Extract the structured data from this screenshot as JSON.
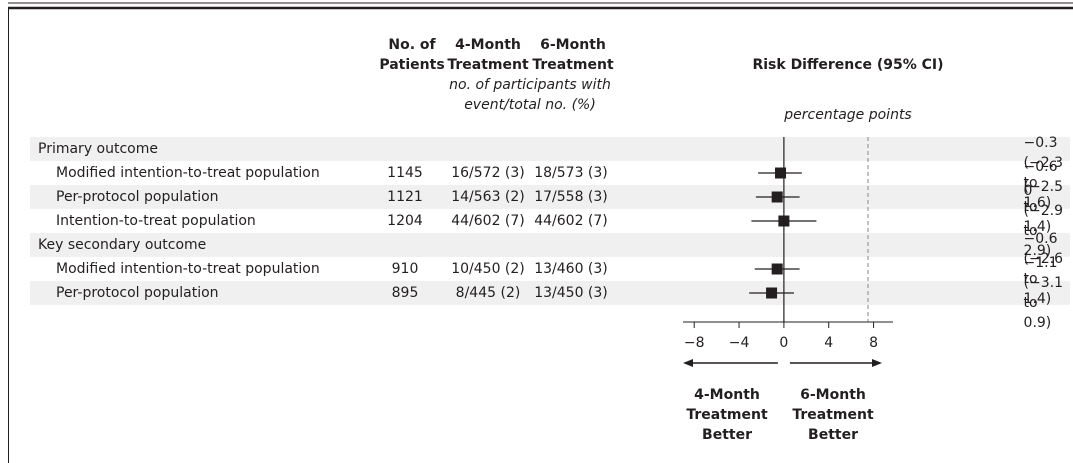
{
  "chart_data": {
    "type": "forest",
    "title": "Risk Difference (95% CI)",
    "x_label": "percentage points",
    "column_headers": {
      "patients": "No. of\nPatients",
      "four_month": "4-Month\nTreatment",
      "six_month": "6-Month\nTreatment",
      "counts_note": "no. of participants with\nevent/total no. (%)"
    },
    "direction_labels": {
      "left": "4-Month\nTreatment\nBetter",
      "right": "6-Month\nTreatment\nBetter"
    },
    "xlim": [
      -9,
      10
    ],
    "xticks": [
      {
        "value": -8,
        "label": "−8"
      },
      {
        "value": -4,
        "label": "−4"
      },
      0,
      4,
      8
    ],
    "reference_line": 7.5,
    "color": "#231f20",
    "sections": [
      {
        "name": "Primary outcome",
        "rows": [
          {
            "label": "Modified intention-to-treat population",
            "patients": 1145,
            "four_month": "16/572 (3)",
            "six_month": "18/573 (3)",
            "estimate": -0.3,
            "lower": -2.3,
            "upper": 1.6,
            "value_label": "−0.3 (−2.3 to 1.6)"
          },
          {
            "label": "Per-protocol population",
            "patients": 1121,
            "four_month": "14/563 (2)",
            "six_month": "17/558 (3)",
            "estimate": -0.6,
            "lower": -2.5,
            "upper": 1.4,
            "value_label": "−0.6 (−2.5 to 1.4)"
          },
          {
            "label": "Intention-to-treat population",
            "patients": 1204,
            "four_month": "44/602 (7)",
            "six_month": "44/602 (7)",
            "estimate": 0,
            "lower": -2.9,
            "upper": 2.9,
            "value_label": "0 (−2.9 to 2.9)"
          }
        ]
      },
      {
        "name": "Key secondary outcome",
        "rows": [
          {
            "label": "Modified intention-to-treat population",
            "patients": 910,
            "four_month": "10/450 (2)",
            "six_month": "13/460 (3)",
            "estimate": -0.6,
            "lower": -2.6,
            "upper": 1.4,
            "value_label": "−0.6 (−2.6 to 1.4)"
          },
          {
            "label": "Per-protocol population",
            "patients": 895,
            "four_month": "8/445 (2)",
            "six_month": "13/450 (3)",
            "estimate": -1.1,
            "lower": -3.1,
            "upper": 0.9,
            "value_label": "−1.1 (−3.1 to 0.9)"
          }
        ]
      }
    ]
  }
}
